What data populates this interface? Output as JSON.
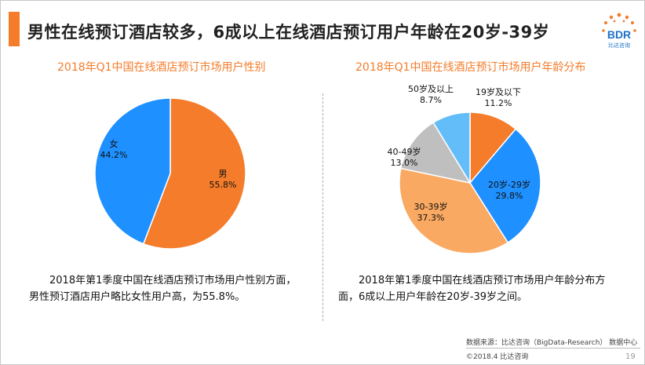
{
  "headline": "男性在线预订酒店较多，6成以上在线酒店预订用户年龄在20岁-39岁",
  "logo": {
    "text": "BDR",
    "subtext": "比达咨询"
  },
  "colors": {
    "accent": "#F47C2A",
    "blue": "#1E90FF",
    "light_orange": "#F9A961",
    "gray": "#BFBFBF",
    "light_blue": "#63BDF8"
  },
  "chart_data": [
    {
      "type": "pie",
      "title": "2018年Q1中国在线酒店预订市场用户性别",
      "slices": [
        {
          "label": "男",
          "value": 55.8,
          "display": "55.8%",
          "color": "#F47C2A"
        },
        {
          "label": "女",
          "value": 44.2,
          "display": "44.2%",
          "color": "#1E90FF"
        }
      ]
    },
    {
      "type": "pie",
      "title": "2018年Q1中国在线酒店预订市场用户年龄分布",
      "slices": [
        {
          "label": "19岁及以下",
          "value": 11.2,
          "display": "11.2%",
          "color": "#F47C2A"
        },
        {
          "label": "20岁-29岁",
          "value": 29.8,
          "display": "29.8%",
          "color": "#1E90FF"
        },
        {
          "label": "30-39岁",
          "value": 37.3,
          "display": "37.3%",
          "color": "#F9A961"
        },
        {
          "label": "40-49岁",
          "value": 13.0,
          "display": "13.0%",
          "color": "#BFBFBF"
        },
        {
          "label": "50岁及以上",
          "value": 8.7,
          "display": "8.7%",
          "color": "#63BDF8"
        }
      ]
    }
  ],
  "captions": {
    "gender": "2018年第1季度中国在线酒店预订市场用户性别方面，男性预订酒店用户略比女性用户高，为55.8%。",
    "age": "2018年第1季度中国在线酒店预订市场用户年龄分布方面，6成以上用户年龄在20岁-39岁之间。"
  },
  "footer": {
    "source": "数据来源：比达咨询（BigData-Research） 数据中心",
    "copyright": "©2018.4 比达咨询",
    "page": "19"
  }
}
